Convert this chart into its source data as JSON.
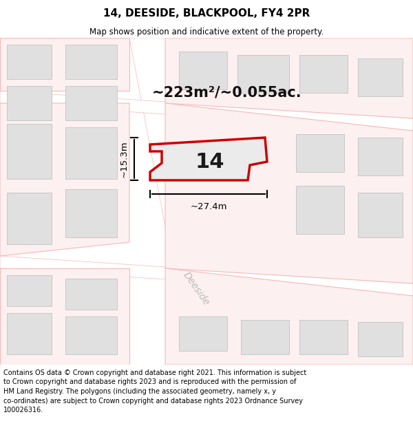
{
  "title": "14, DEESIDE, BLACKPOOL, FY4 2PR",
  "subtitle": "Map shows position and indicative extent of the property.",
  "area_text": "~223m²/~0.055ac.",
  "number_label": "14",
  "dim_width": "~27.4m",
  "dim_height": "~15.3m",
  "street_label": "Deeside",
  "footer_lines": [
    "Contains OS data © Crown copyright and database right 2021. This information is subject",
    "to Crown copyright and database rights 2023 and is reproduced with the permission of",
    "HM Land Registry. The polygons (including the associated geometry, namely x, y",
    "co-ordinates) are subject to Crown copyright and database rights 2023 Ordnance Survey",
    "100026316."
  ],
  "map_bg": "#ffffff",
  "plot_fill": "#e8e8e8",
  "plot_edge": "#cc0000",
  "building_fill": "#e0e0e0",
  "building_edge": "#c8c8c8",
  "plot_border_color": "#f5b8b8",
  "title_fontsize": 11,
  "subtitle_fontsize": 8.5,
  "area_fontsize": 15,
  "number_fontsize": 22,
  "dim_fontsize": 9.5,
  "street_fontsize": 10,
  "footer_fontsize": 7.0
}
